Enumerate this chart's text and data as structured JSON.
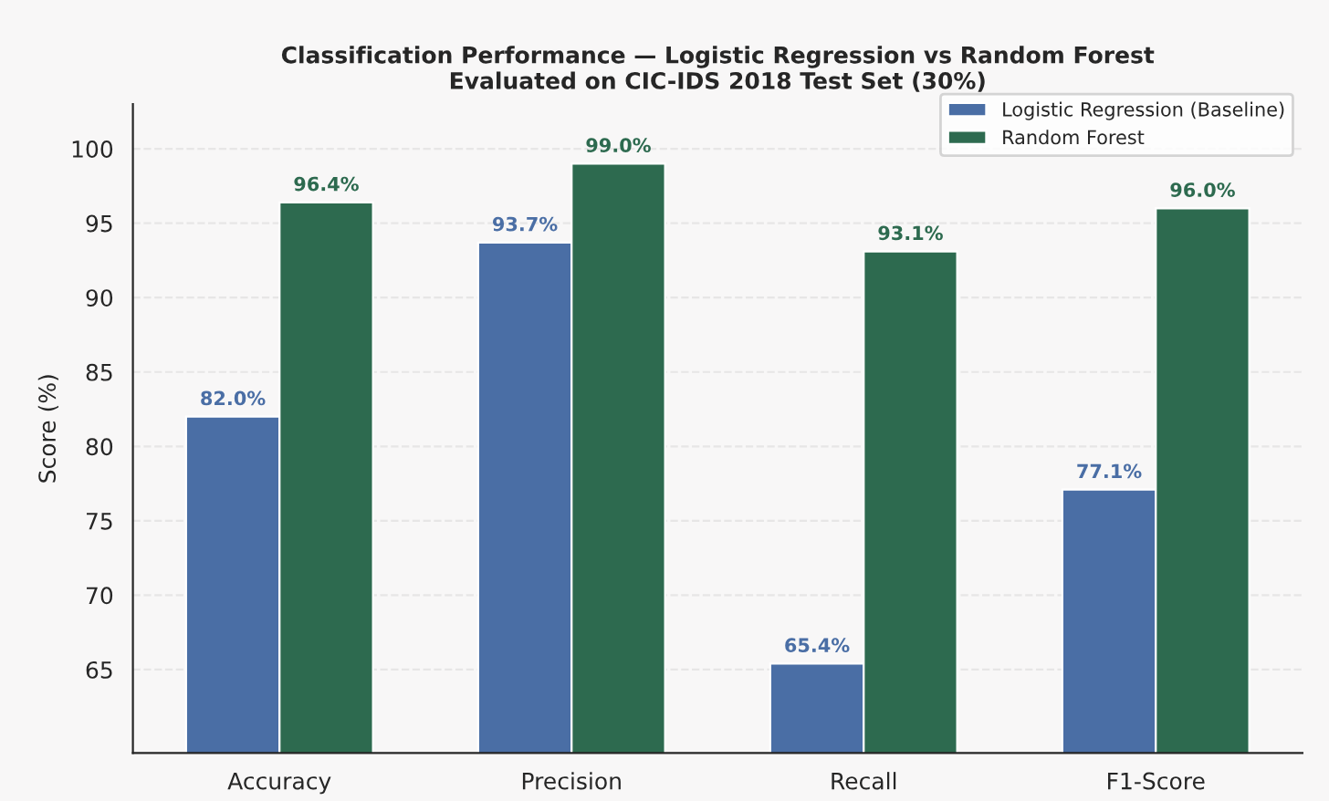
{
  "chart_data": {
    "type": "bar",
    "title": "Classification Performance — Logistic Regression vs Random Forest\nEvaluated on CIC-IDS 2018 Test Set (30%)",
    "ylabel": "Score (%)",
    "categories": [
      "Accuracy",
      "Precision",
      "Recall",
      "F1-Score"
    ],
    "series": [
      {
        "name": "Logistic Regression (Baseline)",
        "color": "#4a6ea5",
        "values": [
          82.0,
          93.7,
          65.4,
          77.1
        ],
        "value_labels": [
          "82.0%",
          "93.7%",
          "65.4%",
          "77.1%"
        ]
      },
      {
        "name": "Random Forest",
        "color": "#2d6a4f",
        "values": [
          96.4,
          99.0,
          93.1,
          96.0
        ],
        "value_labels": [
          "96.4%",
          "99.0%",
          "93.1%",
          "96.0%"
        ]
      }
    ],
    "ylim": [
      59.4,
      103
    ],
    "yticks": [
      65,
      70,
      75,
      80,
      85,
      90,
      95,
      100
    ],
    "grid": "y",
    "legend": "top right"
  }
}
